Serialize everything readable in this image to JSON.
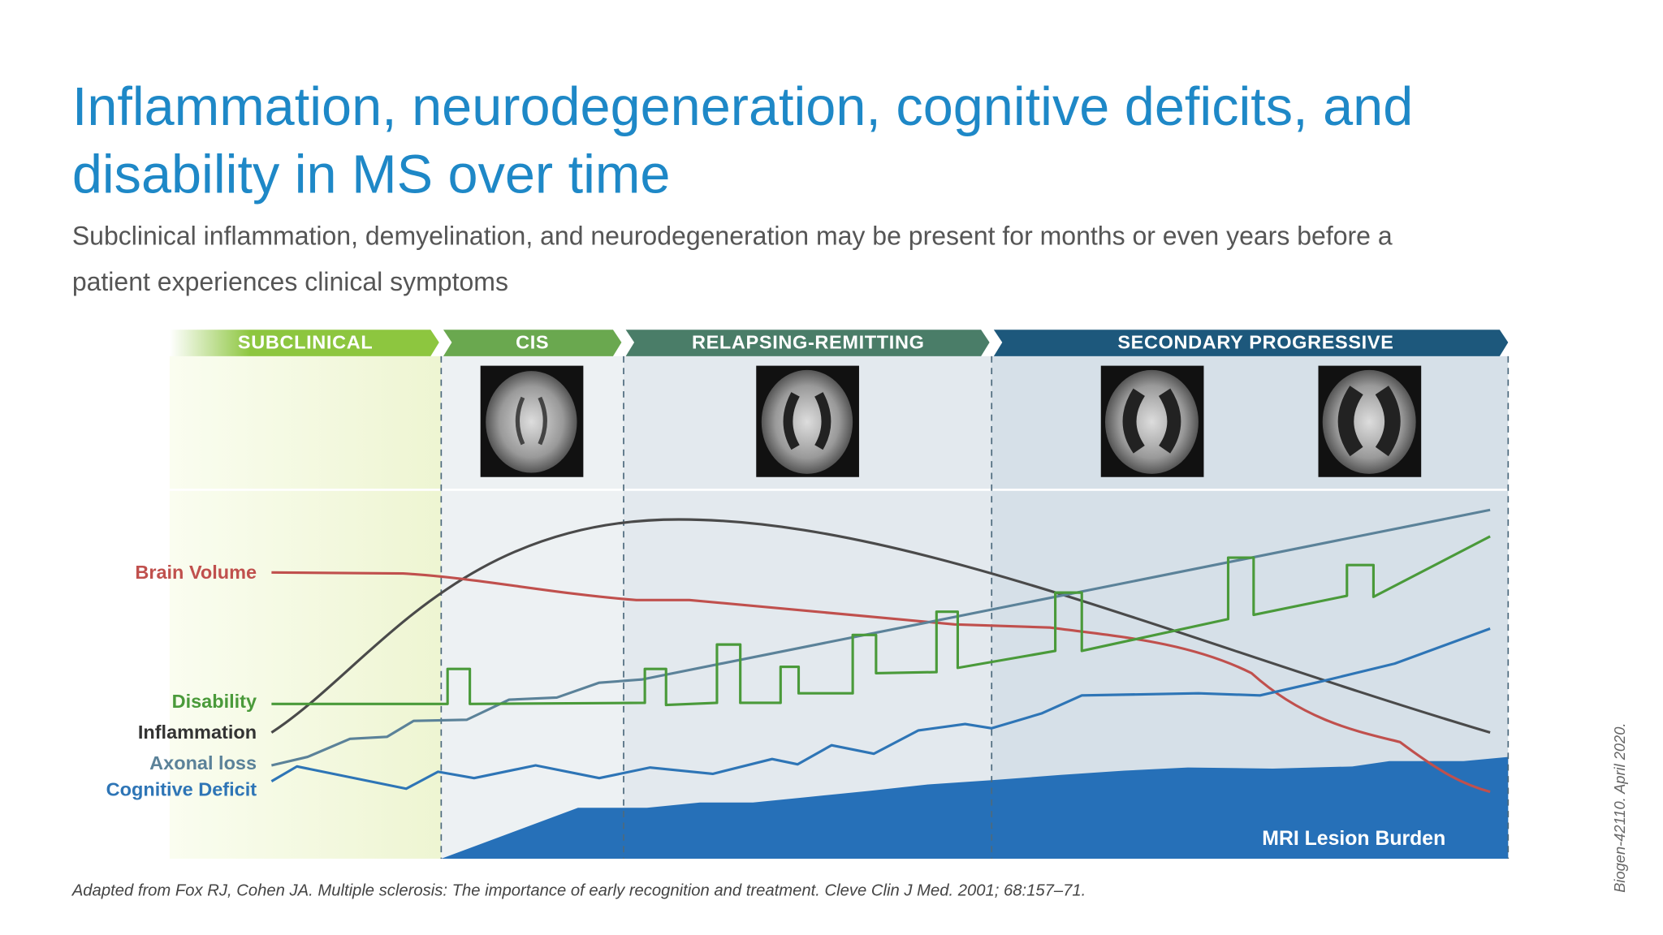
{
  "header": {
    "title_lines": [
      "Inflammation, neurodegeneration, cognitive deficits, and",
      "disability in MS over time"
    ],
    "subtitle_lines": [
      "Subclinical inflammation, demyelination, and neurodegeneration may be present for months or even years before a",
      "patient experiences clinical symptoms"
    ]
  },
  "phases": [
    "SUBCLINICAL",
    "CIS",
    "RELAPSING-REMITTING",
    "SECONDARY PROGRESSIVE"
  ],
  "curve_labels": [
    "Brain Volume",
    "Disability",
    "Inflammation",
    "Axonal loss",
    "Cognitive Deficit"
  ],
  "area_label": "MRI Lesion Burden",
  "footnote": "Adapted from Fox RJ, Cohen JA. Multiple sclerosis: The importance of early recognition and treatment. Cleve Clin J Med. 2001; 68:157–71.",
  "side_note": "Biogen-42110. April 2020."
}
